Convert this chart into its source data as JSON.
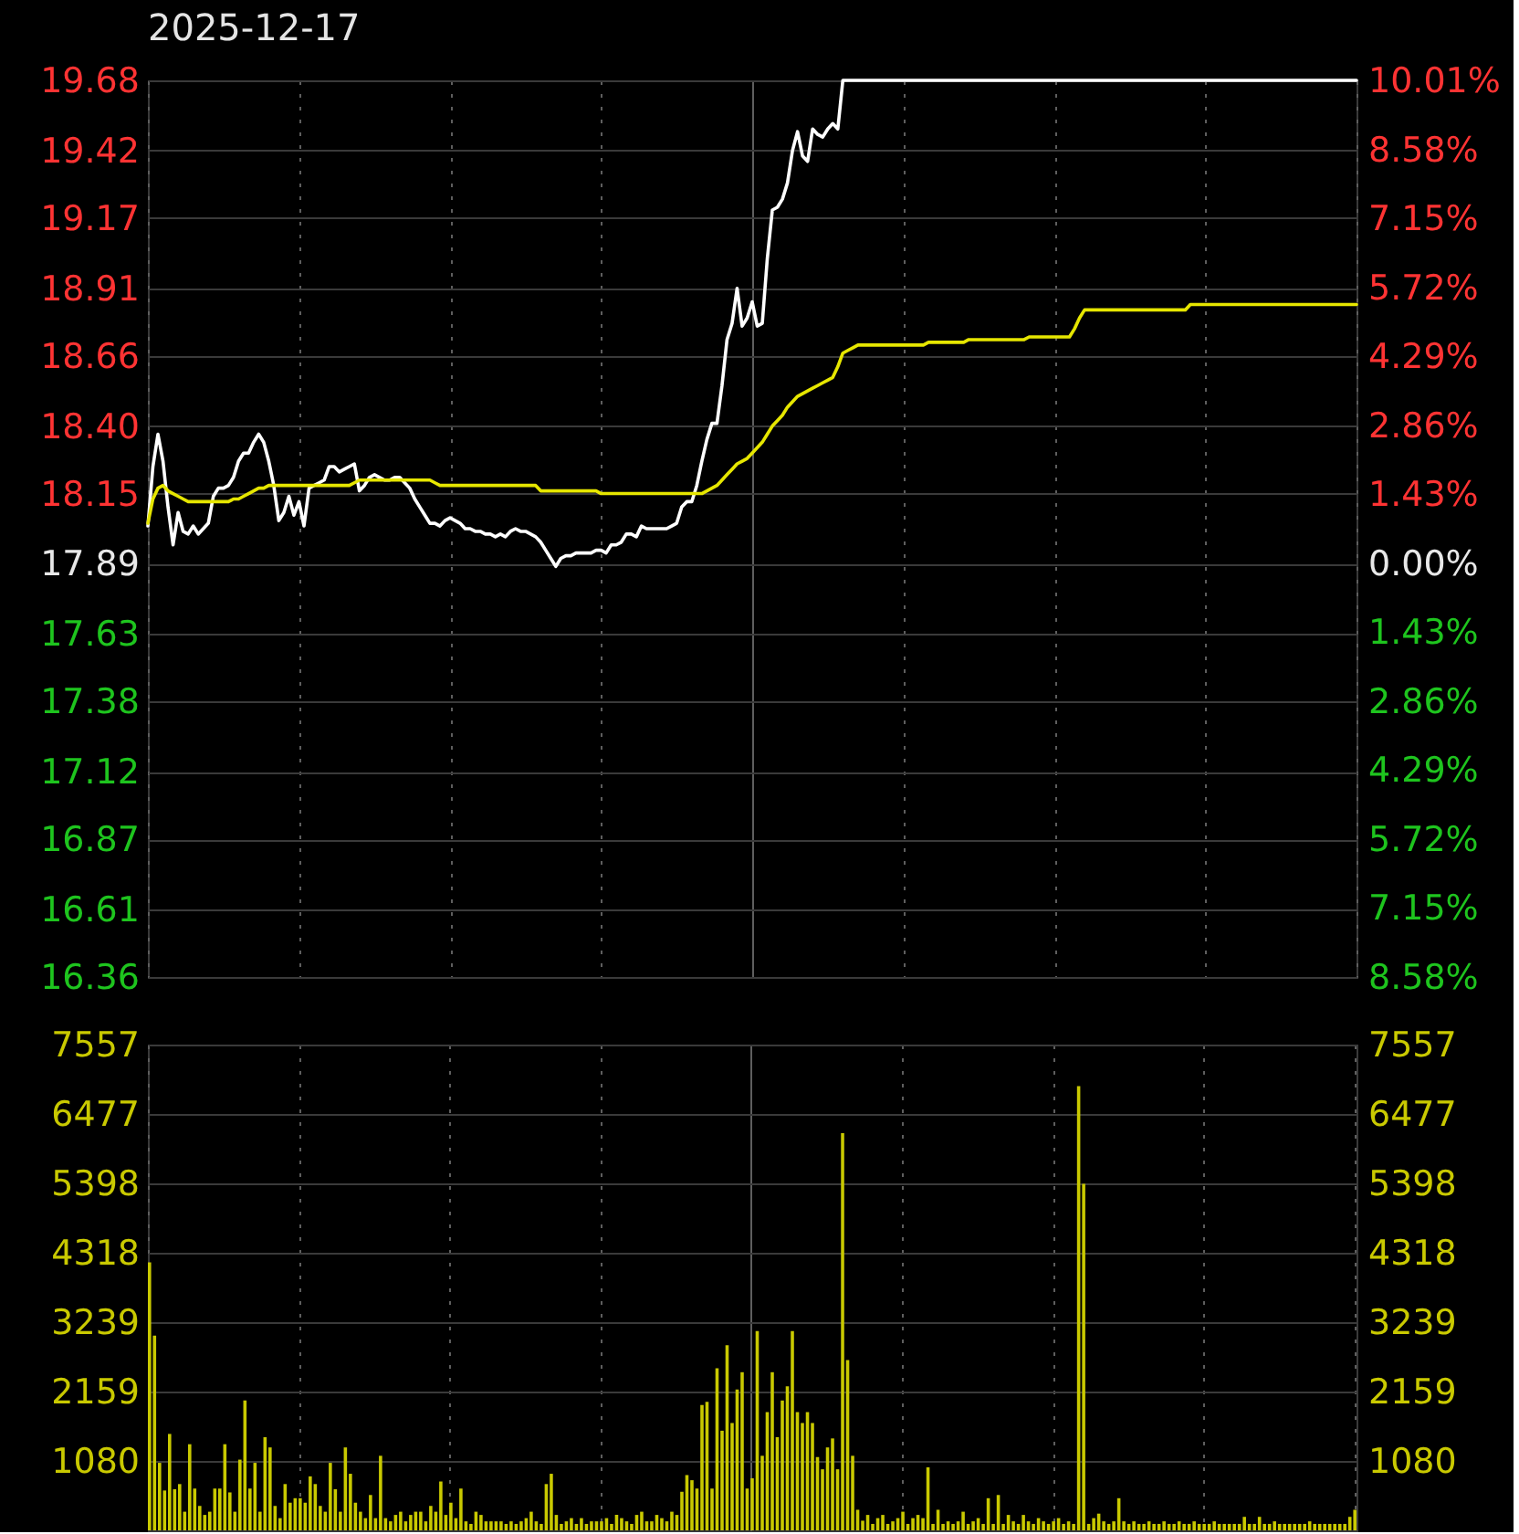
{
  "chart_data": [
    {
      "type": "line",
      "title": "2025-12-17",
      "categories": [
        null,
        null,
        null,
        null,
        null,
        null,
        null,
        null,
        null,
        null,
        null,
        null,
        null,
        null,
        null,
        null,
        null,
        null,
        null,
        null,
        null,
        null,
        null,
        null,
        null,
        null,
        null,
        null,
        null,
        null,
        null,
        null,
        null,
        null,
        null,
        null,
        null,
        null,
        null,
        null,
        null,
        null,
        null,
        null,
        null,
        null,
        null,
        null,
        null,
        null,
        null,
        null,
        null,
        null,
        null,
        null,
        null,
        null,
        null,
        null,
        null,
        null,
        null,
        null,
        null,
        null,
        null,
        null,
        null,
        null,
        null,
        null,
        null,
        null,
        null,
        null,
        null,
        null,
        null,
        null,
        null,
        null,
        null,
        null,
        null,
        null,
        null,
        null,
        null,
        null,
        null,
        null,
        null,
        null,
        null,
        null,
        null,
        null,
        null,
        null,
        null,
        null,
        null,
        null,
        null,
        null,
        null,
        null,
        null,
        null,
        null,
        null,
        null,
        null,
        null,
        null,
        null,
        null,
        null,
        null,
        null,
        null,
        null,
        null,
        null,
        null,
        null,
        null,
        null,
        null,
        null,
        null,
        null,
        null,
        null,
        null,
        null,
        null,
        null,
        null,
        null,
        null,
        null,
        null,
        null,
        null,
        null,
        null,
        null,
        null,
        null,
        null,
        null,
        null,
        null,
        null,
        null,
        null,
        null,
        null,
        null,
        null,
        null,
        null,
        null,
        null,
        null,
        null,
        null,
        null,
        null,
        null,
        null,
        null,
        null,
        null,
        null,
        null,
        null,
        null,
        null,
        null,
        null,
        null,
        null,
        null,
        null,
        null,
        null,
        null,
        null,
        null,
        null,
        null,
        null,
        null,
        null,
        null,
        null,
        null,
        null,
        null,
        null,
        null,
        null,
        null,
        null,
        null,
        null,
        null,
        null,
        null,
        null,
        null,
        null,
        null,
        null,
        null,
        null,
        null,
        null,
        null,
        null,
        null,
        null,
        null,
        null,
        null,
        null,
        null,
        null,
        null,
        null,
        null,
        null,
        null,
        null,
        null,
        null,
        null,
        null
      ],
      "series": [
        {
          "color": "#ffffff",
          "values": [
            18.03,
            18.25,
            18.37,
            18.27,
            18.1,
            17.96,
            18.08,
            18.01,
            18.0,
            18.03,
            18.0,
            18.02,
            18.04,
            18.14,
            18.17,
            18.17,
            18.18,
            18.21,
            18.27,
            18.3,
            18.3,
            18.34,
            18.37,
            18.34,
            18.27,
            18.18,
            18.05,
            18.08,
            18.14,
            18.07,
            18.12,
            18.03,
            18.17,
            18.18,
            18.19,
            18.2,
            18.25,
            18.25,
            18.23,
            18.24,
            18.25,
            18.26,
            18.16,
            18.18,
            18.21,
            18.22,
            18.21,
            18.2,
            18.2,
            18.21,
            18.21,
            18.19,
            18.17,
            18.13,
            18.1,
            18.07,
            18.04,
            18.04,
            18.03,
            18.05,
            18.06,
            18.05,
            18.04,
            18.02,
            18.02,
            18.01,
            18.01,
            18.0,
            18.0,
            17.99,
            18.0,
            17.99,
            18.01,
            18.02,
            18.01,
            18.01,
            18.0,
            17.99,
            17.97,
            17.94,
            17.91,
            17.88,
            17.91,
            17.92,
            17.92,
            17.93,
            17.93,
            17.93,
            17.93,
            17.94,
            17.94,
            17.93,
            17.96,
            17.96,
            17.97,
            18.0,
            18.0,
            17.99,
            18.03,
            18.02,
            18.02,
            18.02,
            18.02,
            18.02,
            18.03,
            18.04,
            18.1,
            18.12,
            18.12,
            18.18,
            18.27,
            18.35,
            18.41,
            18.41,
            18.55,
            18.72,
            18.78,
            18.91,
            18.77,
            18.8,
            18.86,
            18.77,
            18.78,
            19.02,
            19.2,
            19.21,
            19.24,
            19.3,
            19.42,
            19.49,
            19.4,
            19.38,
            19.5,
            19.48,
            19.47,
            19.5,
            19.52,
            19.5,
            19.68,
            19.68,
            19.68,
            19.68,
            19.68,
            19.68,
            19.68,
            19.68,
            19.68,
            19.68,
            19.68,
            19.68,
            19.68,
            19.68,
            19.68,
            19.68,
            19.68,
            19.68,
            19.68,
            19.68,
            19.68,
            19.68,
            19.68,
            19.68,
            19.68,
            19.68,
            19.68,
            19.68,
            19.68,
            19.68,
            19.68,
            19.68,
            19.68,
            19.68,
            19.68,
            19.68,
            19.68,
            19.68,
            19.68,
            19.68,
            19.68,
            19.68,
            19.68,
            19.68,
            19.68,
            19.68,
            19.68,
            19.68,
            19.68,
            19.68,
            19.68,
            19.68,
            19.68,
            19.68,
            19.68,
            19.68,
            19.68,
            19.68,
            19.68,
            19.68,
            19.68,
            19.68,
            19.68,
            19.68,
            19.68,
            19.68,
            19.68,
            19.68,
            19.68,
            19.68,
            19.68,
            19.68,
            19.68,
            19.68,
            19.68,
            19.68,
            19.68,
            19.68,
            19.68,
            19.68,
            19.68,
            19.68,
            19.68,
            19.68,
            19.68,
            19.68,
            19.68,
            19.68,
            19.68,
            19.68,
            19.68,
            19.68,
            19.68,
            19.68,
            19.68,
            19.68,
            19.68,
            19.68,
            19.68,
            19.68,
            19.68,
            19.68,
            19.68
          ]
        },
        {
          "color": "#e6e600",
          "values": [
            18.04,
            18.13,
            18.17,
            18.18,
            18.16,
            18.15,
            18.14,
            18.13,
            18.12,
            18.12,
            18.12,
            18.12,
            18.12,
            18.12,
            18.12,
            18.12,
            18.12,
            18.13,
            18.13,
            18.14,
            18.15,
            18.16,
            18.17,
            18.17,
            18.18,
            18.18,
            18.18,
            18.18,
            18.18,
            18.18,
            18.18,
            18.18,
            18.18,
            18.18,
            18.18,
            18.18,
            18.18,
            18.18,
            18.18,
            18.18,
            18.18,
            18.19,
            18.2,
            18.2,
            18.2,
            18.2,
            18.2,
            18.2,
            18.2,
            18.2,
            18.2,
            18.2,
            18.2,
            18.2,
            18.2,
            18.2,
            18.2,
            18.19,
            18.18,
            18.18,
            18.18,
            18.18,
            18.18,
            18.18,
            18.18,
            18.18,
            18.18,
            18.18,
            18.18,
            18.18,
            18.18,
            18.18,
            18.18,
            18.18,
            18.18,
            18.18,
            18.18,
            18.18,
            18.16,
            18.16,
            18.16,
            18.16,
            18.16,
            18.16,
            18.16,
            18.16,
            18.16,
            18.16,
            18.16,
            18.16,
            18.15,
            18.15,
            18.15,
            18.15,
            18.15,
            18.15,
            18.15,
            18.15,
            18.15,
            18.15,
            18.15,
            18.15,
            18.15,
            18.15,
            18.15,
            18.15,
            18.15,
            18.15,
            18.15,
            18.15,
            18.15,
            18.16,
            18.17,
            18.18,
            18.2,
            18.22,
            18.24,
            18.26,
            18.27,
            18.28,
            18.3,
            18.32,
            18.34,
            18.37,
            18.4,
            18.42,
            18.44,
            18.47,
            18.49,
            18.51,
            18.52,
            18.53,
            18.54,
            18.55,
            18.56,
            18.57,
            18.58,
            18.62,
            18.67,
            18.68,
            18.69,
            18.7,
            18.7,
            18.7,
            18.7,
            18.7,
            18.7,
            18.7,
            18.7,
            18.7,
            18.7,
            18.7,
            18.7,
            18.7,
            18.7,
            18.71,
            18.71,
            18.71,
            18.71,
            18.71,
            18.71,
            18.71,
            18.71,
            18.72,
            18.72,
            18.72,
            18.72,
            18.72,
            18.72,
            18.72,
            18.72,
            18.72,
            18.72,
            18.72,
            18.72,
            18.73,
            18.73,
            18.73,
            18.73,
            18.73,
            18.73,
            18.73,
            18.73,
            18.73,
            18.76,
            18.8,
            18.83,
            18.83,
            18.83,
            18.83,
            18.83,
            18.83,
            18.83,
            18.83,
            18.83,
            18.83,
            18.83,
            18.83,
            18.83,
            18.83,
            18.83,
            18.83,
            18.83,
            18.83,
            18.83,
            18.83,
            18.83,
            18.85,
            18.85,
            18.85,
            18.85,
            18.85,
            18.85,
            18.85,
            18.85,
            18.85,
            18.85,
            18.85,
            18.85,
            18.85,
            18.85,
            18.85,
            18.85,
            18.85,
            18.85,
            18.85,
            18.85,
            18.85,
            18.85,
            18.85,
            18.85,
            18.85,
            18.85,
            18.85,
            18.85,
            18.85,
            18.85,
            18.85,
            18.85,
            18.85,
            18.85
          ]
        }
      ],
      "ylim": [
        16.36,
        19.68
      ],
      "yticks": [
        19.68,
        19.42,
        19.17,
        18.91,
        18.66,
        {
          "value": 18.4,
          "label": "18.40"
        },
        18.15,
        17.89,
        17.63,
        17.38,
        17.12,
        16.87,
        16.61,
        16.36
      ],
      "y2lim": [
        -8.58,
        10.01
      ],
      "y2ticks": [
        {
          "value": 10.01,
          "label": "10.01%"
        },
        {
          "value": 8.58,
          "label": "8.58%"
        },
        {
          "value": 7.15,
          "label": "7.15%"
        },
        {
          "value": 5.72,
          "label": "5.72%"
        },
        {
          "value": 4.29,
          "label": "4.29%"
        },
        {
          "value": 2.86,
          "label": "2.86%"
        },
        {
          "value": 1.43,
          "label": "1.43%"
        },
        {
          "value": 0,
          "label": "0.00%"
        },
        {
          "value": -1.43,
          "label": "1.43%"
        },
        {
          "value": -2.86,
          "label": "2.86%"
        },
        {
          "value": -4.29,
          "label": "4.29%"
        },
        {
          "value": -5.72,
          "label": "5.72%"
        },
        {
          "value": -7.15,
          "label": "7.15%"
        },
        {
          "value": -8.58,
          "label": "8.58%"
        }
      ],
      "grid": true
    },
    {
      "type": "bar",
      "categories": [
        null,
        null,
        null,
        null,
        null,
        null,
        null,
        null,
        null,
        null,
        null,
        null,
        null,
        null,
        null,
        null,
        null,
        null,
        null,
        null,
        null,
        null,
        null,
        null,
        null,
        null,
        null,
        null,
        null,
        null,
        null,
        null,
        null,
        null,
        null,
        null,
        null,
        null,
        null,
        null,
        null,
        null,
        null,
        null,
        null,
        null,
        null,
        null,
        null,
        null,
        null,
        null,
        null,
        null,
        null,
        null,
        null,
        null,
        null,
        null,
        null,
        null,
        null,
        null,
        null,
        null,
        null,
        null,
        null,
        null,
        null,
        null,
        null,
        null,
        null,
        null,
        null,
        null,
        null,
        null,
        null,
        null,
        null,
        null,
        null,
        null,
        null,
        null,
        null,
        null,
        null,
        null,
        null,
        null,
        null,
        null,
        null,
        null,
        null,
        null,
        null,
        null,
        null,
        null,
        null,
        null,
        null,
        null,
        null,
        null,
        null,
        null,
        null,
        null,
        null,
        null,
        null,
        null,
        null,
        null,
        null,
        null,
        null,
        null,
        null,
        null,
        null,
        null,
        null,
        null,
        null,
        null,
        null,
        null,
        null,
        null,
        null,
        null,
        null,
        null,
        null,
        null,
        null,
        null,
        null,
        null,
        null,
        null,
        null,
        null,
        null,
        null,
        null,
        null,
        null,
        null,
        null,
        null,
        null,
        null,
        null,
        null,
        null,
        null,
        null,
        null,
        null,
        null,
        null,
        null,
        null,
        null,
        null,
        null,
        null,
        null,
        null,
        null,
        null,
        null,
        null,
        null,
        null,
        null,
        null,
        null,
        null,
        null,
        null,
        null,
        null,
        null,
        null,
        null,
        null,
        null,
        null,
        null,
        null,
        null,
        null,
        null,
        null,
        null,
        null,
        null,
        null,
        null,
        null,
        null,
        null,
        null,
        null,
        null,
        null,
        null,
        null,
        null,
        null,
        null,
        null,
        null,
        null,
        null,
        null,
        null,
        null,
        null,
        null,
        null,
        null,
        null,
        null,
        null,
        null,
        null,
        null,
        null,
        null,
        null,
        null
      ],
      "color": "#c9c900",
      "values": [
        4170,
        3030,
        1050,
        620,
        1500,
        640,
        720,
        290,
        1340,
        650,
        380,
        240,
        290,
        650,
        650,
        1340,
        590,
        290,
        1100,
        2020,
        650,
        1050,
        290,
        1450,
        1290,
        380,
        190,
        720,
        430,
        500,
        500,
        430,
        840,
        720,
        380,
        290,
        1050,
        640,
        290,
        1290,
        880,
        430,
        290,
        190,
        550,
        190,
        1160,
        190,
        140,
        240,
        290,
        140,
        240,
        290,
        290,
        140,
        380,
        290,
        760,
        240,
        430,
        190,
        650,
        140,
        100,
        290,
        240,
        140,
        140,
        140,
        140,
        100,
        140,
        100,
        140,
        190,
        290,
        140,
        100,
        720,
        880,
        240,
        100,
        140,
        190,
        100,
        190,
        100,
        140,
        140,
        140,
        190,
        100,
        240,
        190,
        140,
        100,
        240,
        290,
        140,
        140,
        240,
        190,
        140,
        290,
        240,
        600,
        860,
        780,
        650,
        1950,
        2000,
        650,
        2520,
        1550,
        2880,
        1670,
        2190,
        2460,
        650,
        810,
        3100,
        1160,
        1840,
        2460,
        1450,
        2020,
        2240,
        3100,
        1840,
        1670,
        1840,
        1670,
        1140,
        950,
        1290,
        1430,
        950,
        6180,
        2650,
        1160,
        320,
        150,
        240,
        100,
        190,
        240,
        100,
        140,
        190,
        290,
        100,
        190,
        240,
        190,
        980,
        100,
        320,
        100,
        140,
        100,
        140,
        290,
        100,
        140,
        190,
        100,
        500,
        100,
        550,
        100,
        240,
        140,
        100,
        240,
        140,
        100,
        190,
        140,
        100,
        140,
        190,
        100,
        140,
        100,
        6910,
        5390,
        100,
        190,
        260,
        140,
        100,
        140,
        500,
        140,
        100,
        140,
        100,
        100,
        140,
        100,
        100,
        140,
        100,
        100,
        140,
        100,
        100,
        140,
        100,
        100,
        100,
        140,
        100,
        100,
        100,
        100,
        100,
        210,
        100,
        100,
        210,
        100,
        100,
        140,
        100,
        100,
        100,
        100,
        100,
        100,
        140,
        100,
        100,
        100,
        100,
        100,
        100,
        100,
        210,
        320
      ],
      "ylim": [
        0,
        7557
      ],
      "yticks": [
        7557,
        6477,
        5398,
        4318,
        3239,
        2159,
        1080
      ],
      "y2lim": [
        0,
        7557
      ],
      "y2ticks": [
        7557,
        6477,
        5398,
        4318,
        3239,
        2159,
        1080
      ],
      "grid": true
    }
  ]
}
